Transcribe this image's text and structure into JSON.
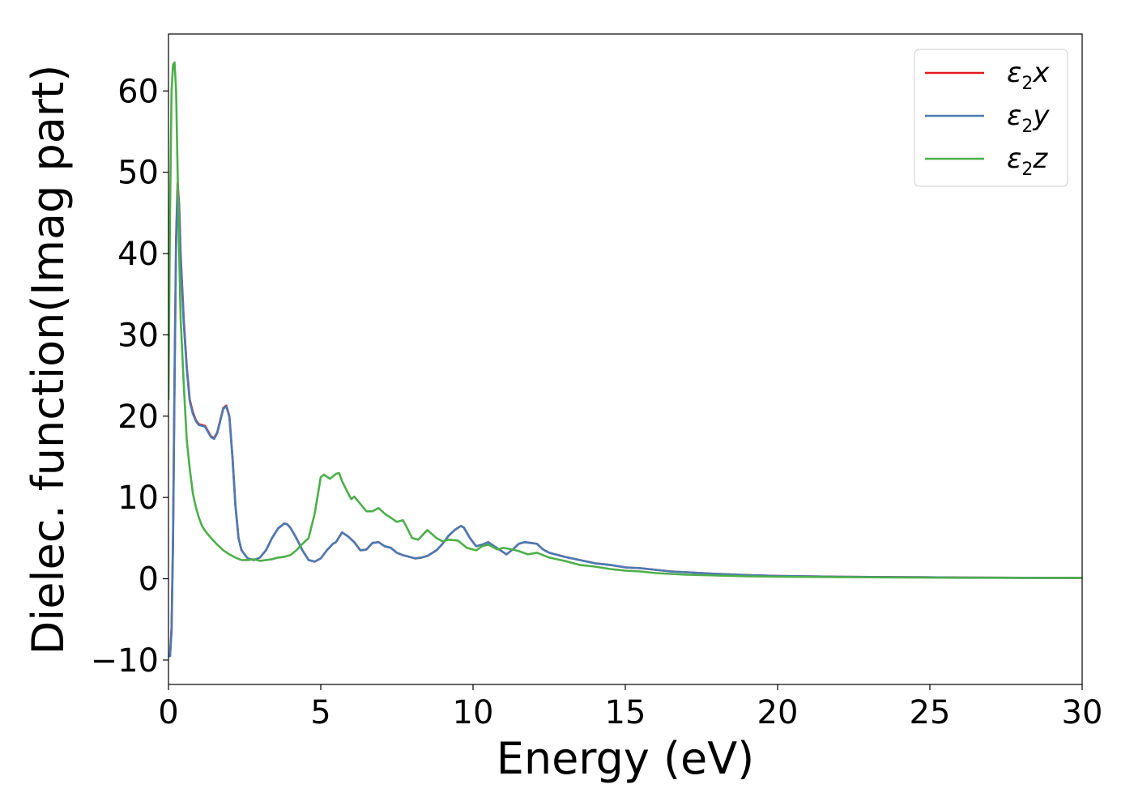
{
  "chart_data": {
    "type": "line",
    "title": "",
    "xlabel": "Energy (eV)",
    "ylabel": "Dielec. function(Imag part)",
    "xlim": [
      0,
      30
    ],
    "ylim": [
      -13,
      67
    ],
    "xticks": [
      0,
      5,
      10,
      15,
      20,
      25,
      30
    ],
    "yticks": [
      -10,
      0,
      10,
      20,
      30,
      40,
      50,
      60
    ],
    "ytick_labels": [
      "−10",
      "0",
      "10",
      "20",
      "30",
      "40",
      "50",
      "60"
    ],
    "grid": false,
    "legend_position": "top-right",
    "series": [
      {
        "name": "ε₂x",
        "label_main": "ε",
        "label_sub": "2",
        "label_tail": "x",
        "color": "#e41a1c",
        "x": [
          0.0,
          0.05,
          0.1,
          0.15,
          0.2,
          0.25,
          0.3,
          0.35,
          0.4,
          0.5,
          0.6,
          0.7,
          0.8,
          0.9,
          1.0,
          1.2,
          1.4,
          1.5,
          1.6,
          1.7,
          1.8,
          1.9,
          2.0,
          2.1,
          2.2,
          2.3,
          2.4,
          2.6,
          2.8,
          3.0,
          3.2,
          3.4,
          3.6,
          3.8,
          3.9,
          4.0,
          4.2,
          4.4,
          4.6,
          4.8,
          5.0,
          5.2,
          5.4,
          5.5,
          5.7,
          5.9,
          6.1,
          6.3,
          6.5,
          6.7,
          6.9,
          7.1,
          7.3,
          7.5,
          7.7,
          7.9,
          8.1,
          8.3,
          8.5,
          8.8,
          9.0,
          9.2,
          9.4,
          9.6,
          9.7,
          9.9,
          10.1,
          10.3,
          10.5,
          10.7,
          10.9,
          11.1,
          11.3,
          11.5,
          11.7,
          11.9,
          12.1,
          12.3,
          12.5,
          13.0,
          13.5,
          14.0,
          14.5,
          15.0,
          15.5,
          16.0,
          16.5,
          17.0,
          18.0,
          19.0,
          20.0,
          22.0,
          24.0,
          26.0,
          28.0,
          30.0
        ],
        "y": [
          -9.5,
          -9.5,
          -6.0,
          5.0,
          25.0,
          42.0,
          48.7,
          46.0,
          40.0,
          32.0,
          26.0,
          22.0,
          20.5,
          19.5,
          19.0,
          18.8,
          17.5,
          17.3,
          18.0,
          19.5,
          21.0,
          21.3,
          20.0,
          15.0,
          9.0,
          5.0,
          3.5,
          2.5,
          2.3,
          2.6,
          3.5,
          5.0,
          6.2,
          6.8,
          6.7,
          6.3,
          5.0,
          3.5,
          2.3,
          2.1,
          2.5,
          3.5,
          4.3,
          4.5,
          5.7,
          5.2,
          4.5,
          3.5,
          3.6,
          4.4,
          4.5,
          4.0,
          3.8,
          3.2,
          2.9,
          2.7,
          2.5,
          2.6,
          2.8,
          3.5,
          4.3,
          5.3,
          6.0,
          6.5,
          6.3,
          5.0,
          4.0,
          4.2,
          4.5,
          4.0,
          3.5,
          3.0,
          3.6,
          4.3,
          4.5,
          4.4,
          4.3,
          3.6,
          3.2,
          2.7,
          2.3,
          1.9,
          1.7,
          1.4,
          1.3,
          1.1,
          0.9,
          0.8,
          0.6,
          0.45,
          0.35,
          0.25,
          0.2,
          0.15,
          0.12,
          0.1
        ]
      },
      {
        "name": "ε₂y",
        "label_main": "ε",
        "label_sub": "2",
        "label_tail": "y",
        "color": "#4a7ab3",
        "x": [
          0.0,
          0.05,
          0.1,
          0.15,
          0.2,
          0.25,
          0.3,
          0.35,
          0.4,
          0.5,
          0.6,
          0.7,
          0.8,
          0.9,
          1.0,
          1.2,
          1.4,
          1.5,
          1.6,
          1.7,
          1.8,
          1.9,
          2.0,
          2.1,
          2.2,
          2.3,
          2.4,
          2.6,
          2.8,
          3.0,
          3.2,
          3.4,
          3.6,
          3.8,
          3.9,
          4.0,
          4.2,
          4.4,
          4.6,
          4.8,
          5.0,
          5.2,
          5.4,
          5.5,
          5.7,
          5.9,
          6.1,
          6.3,
          6.5,
          6.7,
          6.9,
          7.1,
          7.3,
          7.5,
          7.7,
          7.9,
          8.1,
          8.3,
          8.5,
          8.8,
          9.0,
          9.2,
          9.4,
          9.6,
          9.7,
          9.9,
          10.1,
          10.3,
          10.5,
          10.7,
          10.9,
          11.1,
          11.3,
          11.5,
          11.7,
          11.9,
          12.1,
          12.3,
          12.5,
          13.0,
          13.5,
          14.0,
          14.5,
          15.0,
          15.5,
          16.0,
          16.5,
          17.0,
          18.0,
          19.0,
          20.0,
          22.0,
          24.0,
          26.0,
          28.0,
          30.0
        ],
        "y": [
          -9.5,
          -9.5,
          -6.5,
          4.0,
          24.0,
          41.0,
          48.2,
          45.5,
          39.5,
          31.5,
          25.8,
          21.8,
          20.3,
          19.4,
          18.9,
          18.7,
          17.4,
          17.2,
          17.9,
          19.4,
          20.9,
          21.2,
          19.9,
          14.9,
          8.9,
          5.0,
          3.5,
          2.5,
          2.3,
          2.6,
          3.5,
          5.0,
          6.2,
          6.8,
          6.7,
          6.3,
          5.0,
          3.5,
          2.3,
          2.1,
          2.5,
          3.5,
          4.3,
          4.5,
          5.7,
          5.2,
          4.5,
          3.5,
          3.6,
          4.4,
          4.5,
          4.0,
          3.8,
          3.2,
          2.9,
          2.7,
          2.5,
          2.6,
          2.8,
          3.5,
          4.3,
          5.3,
          6.0,
          6.5,
          6.3,
          5.0,
          4.0,
          4.2,
          4.5,
          4.0,
          3.5,
          3.0,
          3.6,
          4.3,
          4.5,
          4.4,
          4.3,
          3.6,
          3.2,
          2.7,
          2.3,
          1.9,
          1.7,
          1.4,
          1.3,
          1.1,
          0.9,
          0.8,
          0.6,
          0.45,
          0.35,
          0.25,
          0.2,
          0.15,
          0.12,
          0.1
        ]
      },
      {
        "name": "ε₂z",
        "label_main": "ε",
        "label_sub": "2",
        "label_tail": "z",
        "color": "#4daf4a",
        "x": [
          0.0,
          0.05,
          0.1,
          0.15,
          0.2,
          0.25,
          0.3,
          0.35,
          0.4,
          0.5,
          0.6,
          0.7,
          0.8,
          0.9,
          1.0,
          1.1,
          1.2,
          1.4,
          1.6,
          1.8,
          2.0,
          2.2,
          2.4,
          2.6,
          2.8,
          3.0,
          3.2,
          3.4,
          3.6,
          3.8,
          4.0,
          4.2,
          4.4,
          4.6,
          4.8,
          5.0,
          5.1,
          5.3,
          5.5,
          5.6,
          5.7,
          5.9,
          6.0,
          6.1,
          6.3,
          6.5,
          6.7,
          6.9,
          7.1,
          7.3,
          7.5,
          7.7,
          7.8,
          8.0,
          8.2,
          8.5,
          8.8,
          9.0,
          9.2,
          9.5,
          9.8,
          10.1,
          10.3,
          10.5,
          10.8,
          11.0,
          11.3,
          11.5,
          11.8,
          12.1,
          12.5,
          13.0,
          13.5,
          14.0,
          14.5,
          15.0,
          15.5,
          16.0,
          16.5,
          17.0,
          18.0,
          19.0,
          20.0,
          22.0,
          24.0,
          26.0,
          28.0,
          30.0
        ],
        "y": [
          22.0,
          45.0,
          60.0,
          63.2,
          63.5,
          60.0,
          50.0,
          40.0,
          32.0,
          24.0,
          17.0,
          13.5,
          10.5,
          8.8,
          7.5,
          6.5,
          5.9,
          5.0,
          4.2,
          3.5,
          3.0,
          2.6,
          2.3,
          2.3,
          2.4,
          2.2,
          2.3,
          2.4,
          2.6,
          2.7,
          2.9,
          3.5,
          4.3,
          5.0,
          8.0,
          12.5,
          12.8,
          12.3,
          12.9,
          13.0,
          12.0,
          10.5,
          9.8,
          10.1,
          9.2,
          8.3,
          8.3,
          8.7,
          8.0,
          7.5,
          7.0,
          7.2,
          6.5,
          5.0,
          4.8,
          6.0,
          5.0,
          4.6,
          4.8,
          4.7,
          3.8,
          3.5,
          4.0,
          4.2,
          3.6,
          3.8,
          3.6,
          3.4,
          3.0,
          3.2,
          2.6,
          2.2,
          1.7,
          1.5,
          1.2,
          1.0,
          0.9,
          0.7,
          0.6,
          0.5,
          0.4,
          0.3,
          0.25,
          0.2,
          0.15,
          0.12,
          0.1,
          0.1
        ]
      }
    ]
  }
}
